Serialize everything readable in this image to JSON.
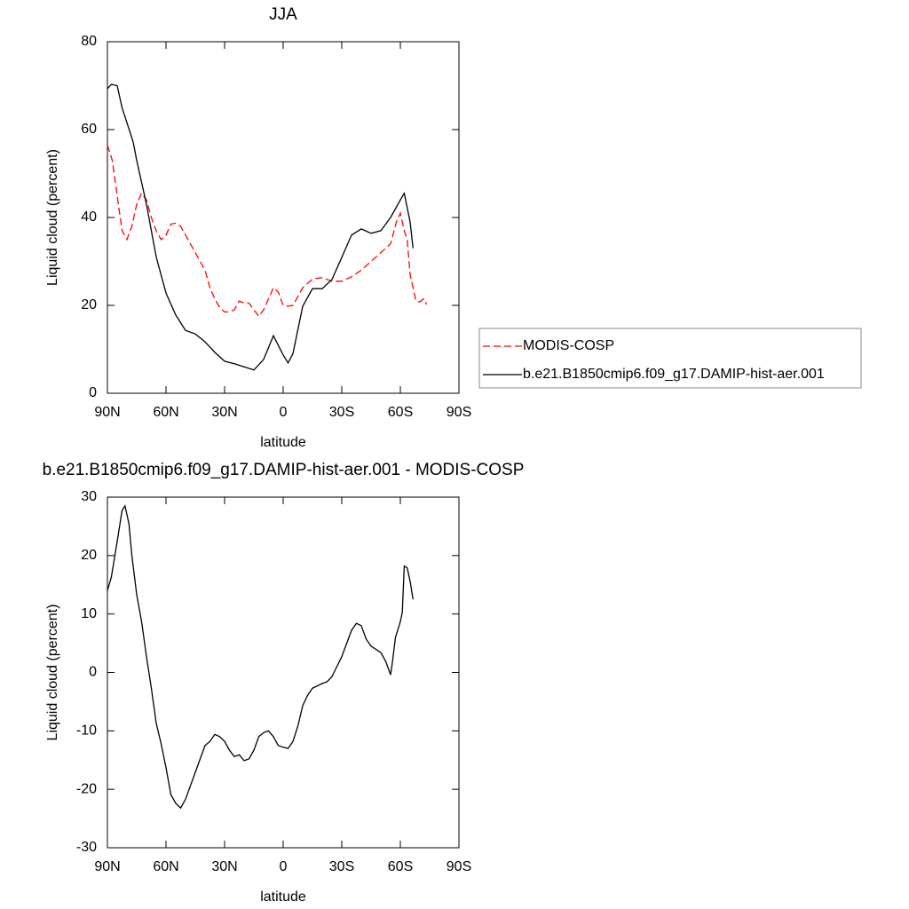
{
  "chart_data": [
    {
      "type": "line",
      "title": "JJA",
      "x_label": "latitude",
      "y_label": "Liquid cloud (percent)",
      "xlim": [
        90,
        -90
      ],
      "ylim": [
        0,
        80
      ],
      "xticks": [
        {
          "value": 90,
          "label": "90N"
        },
        {
          "value": 60,
          "label": "60N"
        },
        {
          "value": 30,
          "label": "30N"
        },
        0,
        {
          "value": -30,
          "label": "30S"
        },
        {
          "value": -60,
          "label": "60S"
        },
        {
          "value": -90,
          "label": "90S"
        }
      ],
      "yticks": [
        0,
        20,
        40,
        60,
        80
      ],
      "legend": "right",
      "series": [
        {
          "name": "MODIS-COSP",
          "color": "#ff0000",
          "line_style": "dashed",
          "x": [
            90,
            87.5,
            85,
            82.5,
            80,
            77.5,
            75,
            72.5,
            70,
            67.5,
            65,
            62.5,
            60,
            57.5,
            55,
            52.5,
            50,
            45,
            40,
            37.5,
            35,
            32.5,
            30,
            27.5,
            25,
            22.5,
            20,
            17.5,
            15,
            12.5,
            10,
            7.5,
            5,
            2.5,
            0,
            -2.5,
            -5,
            -7.5,
            -10,
            -15,
            -20,
            -25,
            -30,
            -35,
            -40,
            -45,
            -50,
            -55,
            -58,
            -60,
            -62,
            -63.5,
            -65,
            -68,
            -70,
            -72,
            -73.5
          ],
          "values": [
            56.5,
            53,
            45,
            37,
            35,
            38,
            43,
            45.5,
            44,
            40,
            37,
            35,
            36,
            38.5,
            38.7,
            38,
            36,
            32,
            28,
            24,
            21.5,
            19.5,
            18.5,
            18.5,
            19,
            21,
            20.5,
            20.5,
            19,
            17.5,
            19,
            21.5,
            24,
            23,
            20,
            19.8,
            20,
            22,
            24,
            26,
            26.3,
            25.5,
            25.5,
            26.5,
            28,
            30,
            32,
            34,
            39,
            41,
            37,
            35,
            27,
            21,
            20.8,
            21.5,
            20.2
          ]
        },
        {
          "name": "b.e21.B1850cmip6.f09_g17.DAMIP-hist-aer.001",
          "color": "#000000",
          "line_style": "solid",
          "x": [
            90,
            88,
            85,
            82.5,
            76.8,
            75,
            70,
            65,
            60,
            55,
            50,
            45,
            40,
            35,
            30,
            25,
            20,
            15,
            10,
            5,
            0,
            -2.5,
            -5,
            -10,
            -15,
            -20,
            -25,
            -30,
            -35,
            -40,
            -45,
            -50,
            -55,
            -60,
            -62,
            -65,
            -66.5
          ],
          "values": [
            69.3,
            70.3,
            70,
            65,
            57.2,
            53,
            43,
            31,
            22.8,
            17.8,
            14.3,
            13.5,
            11.7,
            9.3,
            7.3,
            6.7,
            6,
            5.3,
            7.7,
            13.1,
            8.7,
            6.9,
            9,
            19.8,
            23.8,
            23.8,
            25.9,
            30.9,
            36,
            37.4,
            36.4,
            37,
            40,
            44,
            45.5,
            39,
            33
          ]
        }
      ]
    },
    {
      "type": "line",
      "title": "b.e21.B1850cmip6.f09_g17.DAMIP-hist-aer.001 - MODIS-COSP",
      "x_label": "latitude",
      "y_label": "Liquid cloud (percent)",
      "xlim": [
        90,
        -90
      ],
      "ylim": [
        -30,
        30
      ],
      "xticks": [
        {
          "value": 90,
          "label": "90N"
        },
        {
          "value": 60,
          "label": "60N"
        },
        {
          "value": 30,
          "label": "30N"
        },
        0,
        {
          "value": -30,
          "label": "30S"
        },
        {
          "value": -60,
          "label": "60S"
        },
        {
          "value": -90,
          "label": "90S"
        }
      ],
      "yticks": [
        -30,
        -20,
        -10,
        0,
        10,
        20,
        30
      ],
      "series": [
        {
          "color": "#000000",
          "line_style": "solid",
          "x": [
            90,
            88,
            85,
            82.5,
            81,
            79,
            77.5,
            75,
            72.5,
            70,
            67.5,
            65,
            62.5,
            60,
            57.5,
            55,
            52.5,
            50,
            47.5,
            45,
            42.5,
            40,
            37.5,
            35,
            32.5,
            30,
            27.5,
            25,
            22.5,
            20,
            17.5,
            15,
            12.5,
            10,
            7.5,
            5,
            2.5,
            0,
            -2.5,
            -5,
            -7.5,
            -10,
            -12.5,
            -15,
            -20,
            -22.5,
            -25,
            -30,
            -35,
            -37.5,
            -40,
            -42.5,
            -45,
            -50,
            -52.5,
            -55,
            -56,
            -57.5,
            -60,
            -61,
            -62,
            -63.5,
            -65,
            -66.5
          ],
          "values": [
            14,
            16.3,
            22.4,
            27.7,
            28.5,
            25.5,
            20.1,
            13.3,
            8.7,
            2.7,
            -2.7,
            -8.7,
            -12.2,
            -16.3,
            -20.9,
            -22.4,
            -23.2,
            -21.7,
            -19.4,
            -17.1,
            -14.8,
            -12.5,
            -11.8,
            -10.6,
            -11,
            -11.8,
            -13.3,
            -14.4,
            -14.1,
            -15.1,
            -14.8,
            -13.3,
            -11,
            -10.3,
            -10,
            -11,
            -12.5,
            -12.8,
            -13,
            -11.8,
            -9.2,
            -5.7,
            -3.9,
            -2.7,
            -1.9,
            -1.6,
            -0.7,
            2.7,
            7.2,
            8.4,
            8,
            5.7,
            4.5,
            3.4,
            1.9,
            -0.4,
            1.9,
            6,
            8.7,
            10.3,
            18.2,
            17.9,
            15.6,
            12.5
          ]
        }
      ]
    }
  ]
}
